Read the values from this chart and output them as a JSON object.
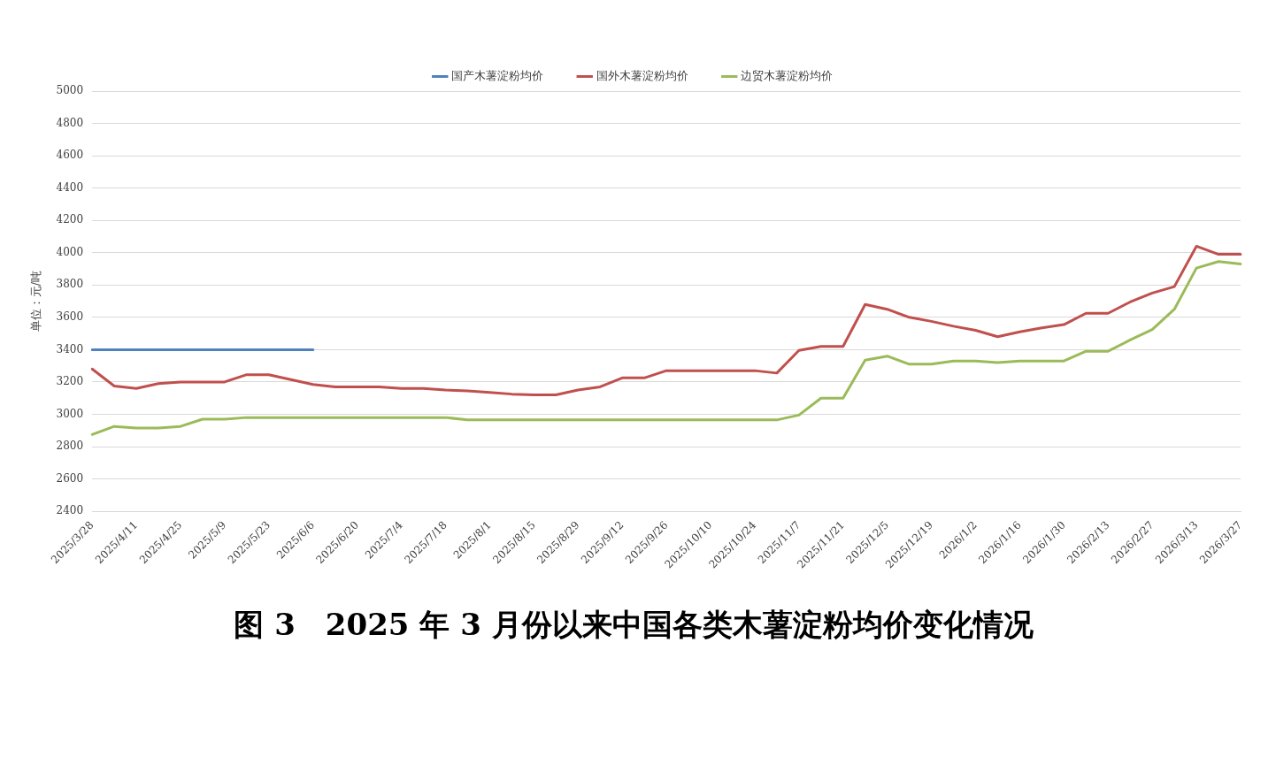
{
  "chart_data": {
    "type": "line",
    "title": "图 3　2025 年 3 月份以来中国各类木薯淀粉均价变化情况",
    "ylabel": "单位：元/吨",
    "categories": [
      "2025/3/28",
      null,
      "2025/4/11",
      null,
      "2025/4/25",
      null,
      "2025/5/9",
      null,
      "2025/5/23",
      null,
      "2025/6/6",
      null,
      "2025/6/20",
      null,
      "2025/7/4",
      null,
      "2025/7/18",
      null,
      "2025/8/1",
      null,
      "2025/8/15",
      null,
      "2025/8/29",
      null,
      "2025/9/12",
      null,
      "2025/9/26",
      null,
      "2025/10/10",
      null,
      "2025/10/24",
      null,
      "2025/11/7",
      null,
      "2025/11/21",
      null,
      "2025/12/5",
      null,
      "2025/12/19",
      null,
      "2026/1/2",
      null,
      "2026/1/16",
      null,
      "2026/1/30",
      null,
      "2026/2/13",
      null,
      "2026/2/27",
      null,
      "2026/3/13",
      null,
      "2026/3/27"
    ],
    "series": [
      {
        "name": "国产木薯淀粉均价",
        "color": "#4f81bd",
        "values": [
          3400,
          3400,
          3400,
          3400,
          3400,
          3400,
          3400,
          3400,
          3400,
          3400,
          3400,
          null,
          null,
          null,
          null,
          null,
          null,
          null,
          null,
          null,
          null,
          null,
          null,
          null,
          null,
          null,
          null,
          null,
          null,
          null,
          null,
          null,
          null,
          null,
          null,
          null,
          null,
          null,
          null,
          null,
          null,
          null,
          null,
          null,
          null,
          null,
          null,
          null,
          null,
          null,
          null,
          null,
          null
        ]
      },
      {
        "name": "国外木薯淀粉均价",
        "color": "#c0504d",
        "values": [
          3280,
          3175,
          3160,
          3190,
          3200,
          3200,
          3200,
          3245,
          3245,
          3215,
          3185,
          3170,
          3170,
          3170,
          3160,
          3160,
          3150,
          3145,
          3135,
          3125,
          3120,
          3120,
          3150,
          3170,
          3225,
          3225,
          3270,
          3270,
          3270,
          3270,
          3270,
          3255,
          3395,
          3420,
          3420,
          3680,
          3650,
          3600,
          3575,
          3545,
          3520,
          3480,
          3510,
          3535,
          3555,
          3625,
          3625,
          3695,
          3750,
          3790,
          4040,
          3990,
          3990
        ]
      },
      {
        "name": "边贸木薯淀粉均价",
        "color": "#9bbb59",
        "values": [
          2875,
          2925,
          2915,
          2915,
          2925,
          2970,
          2970,
          2980,
          2980,
          2980,
          2980,
          2980,
          2980,
          2980,
          2980,
          2980,
          2980,
          2965,
          2965,
          2965,
          2965,
          2965,
          2965,
          2965,
          2965,
          2965,
          2965,
          2965,
          2965,
          2965,
          2965,
          2965,
          2995,
          3100,
          3100,
          3335,
          3360,
          3310,
          3310,
          3330,
          3330,
          3320,
          3330,
          3330,
          3330,
          3390,
          3390,
          3460,
          3525,
          3650,
          3905,
          3945,
          3930
        ]
      }
    ],
    "ylim": [
      2400,
      5000
    ],
    "yticks": [
      2400,
      2600,
      2800,
      3000,
      3200,
      3400,
      3600,
      3800,
      4000,
      4200,
      4400,
      4600,
      4800,
      5000
    ],
    "grid": "y",
    "legend": "top",
    "marker": "none",
    "line_style": "solid"
  }
}
